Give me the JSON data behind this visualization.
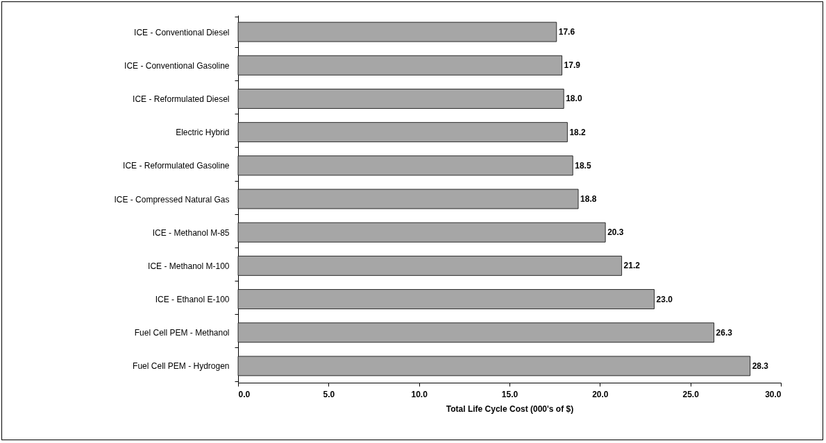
{
  "chart_data": {
    "type": "bar",
    "orientation": "horizontal",
    "xlabel": "Total Life Cycle Cost (000's of $)",
    "categories": [
      "ICE - Conventional Diesel",
      "ICE - Conventional Gasoline",
      "ICE - Reformulated Diesel",
      "Electric Hybrid",
      "ICE - Reformulated Gasoline",
      "ICE - Compressed Natural Gas",
      "ICE - Methanol M-85",
      "ICE - Methanol M-100",
      "ICE - Ethanol E-100",
      "Fuel Cell PEM - Methanol",
      "Fuel Cell PEM - Hydrogen"
    ],
    "values": [
      17.6,
      17.9,
      18.0,
      18.2,
      18.5,
      18.8,
      20.3,
      21.2,
      23.0,
      26.3,
      28.3
    ],
    "color": "#a6a6a6",
    "xlim": [
      0,
      30
    ],
    "xticks": [
      {
        "value": 0,
        "label": "0.0"
      },
      {
        "value": 5,
        "label": "5.0"
      },
      {
        "value": 10,
        "label": "10.0"
      },
      {
        "value": 15,
        "label": "15.0"
      },
      {
        "value": 20,
        "label": "20.0"
      },
      {
        "value": 25,
        "label": "25.0"
      },
      {
        "value": 30,
        "label": "30.0"
      }
    ],
    "value_labels": [
      "17.6",
      "17.9",
      "18.0",
      "18.2",
      "18.5",
      "18.8",
      "20.3",
      "21.2",
      "23.0",
      "26.3",
      "28.3"
    ],
    "grid": false
  }
}
